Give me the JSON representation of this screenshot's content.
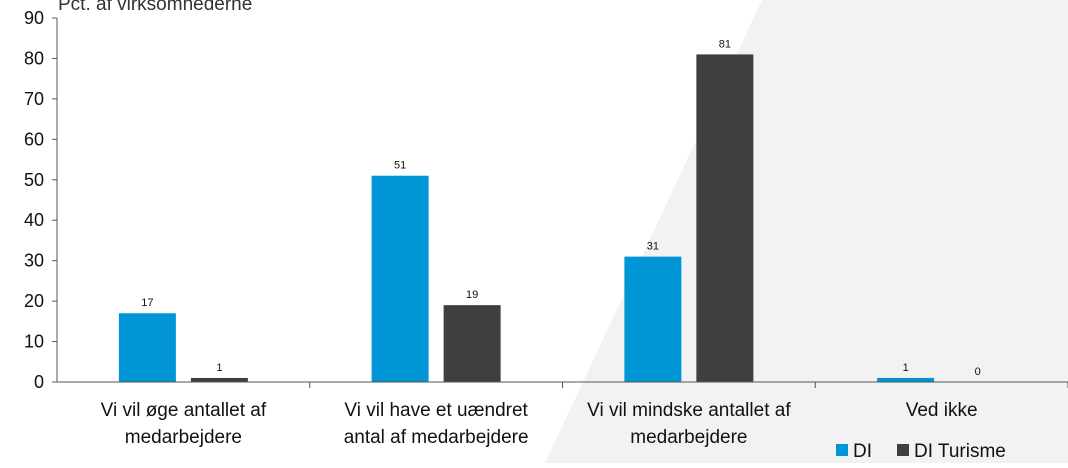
{
  "unit_label": "Pct. af virksomhederne",
  "colors": {
    "di": "#0096D6",
    "di_turisme": "#3F3F3F",
    "axis": "#555555",
    "text": "#111111",
    "backdrop": "#F2F2F2"
  },
  "chart_data": {
    "type": "bar",
    "categories": [
      [
        "Vi vil øge antallet af",
        "medarbejdere"
      ],
      [
        "Vi vil have et uændret",
        "antal af medarbejdere"
      ],
      [
        "Vi vil mindske antallet af",
        "medarbejdere"
      ],
      [
        "Ved ikke"
      ]
    ],
    "series": [
      {
        "name": "DI",
        "values": [
          17,
          51,
          31,
          1
        ],
        "labels": [
          "17",
          "51",
          "31",
          "1"
        ]
      },
      {
        "name": "DI Turisme",
        "values": [
          1,
          19,
          81,
          0
        ],
        "labels": [
          "1",
          "19",
          "81",
          "0"
        ]
      }
    ],
    "yticks": [
      "0",
      "10",
      "20",
      "30",
      "40",
      "50",
      "60",
      "70",
      "80",
      "90"
    ],
    "ylim": [
      0,
      90
    ],
    "grid": false,
    "legend": "bottom-right"
  }
}
